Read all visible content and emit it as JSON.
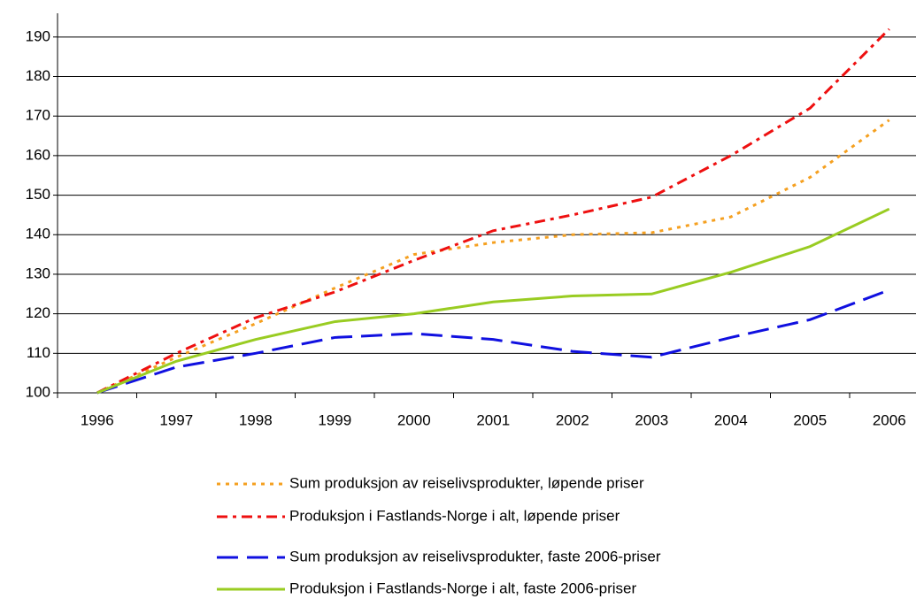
{
  "chart_data": {
    "type": "line",
    "categories": [
      "1996",
      "1997",
      "1998",
      "1999",
      "2000",
      "2001",
      "2002",
      "2003",
      "2004",
      "2005",
      "2006"
    ],
    "series": [
      {
        "name": "Sum produksjon av reiselivsprodukter, løpende priser",
        "color": "#f5a020",
        "style": "dotted",
        "values": [
          100,
          109,
          117.5,
          126.5,
          135,
          138,
          140,
          140.5,
          144.5,
          154.5,
          169
        ]
      },
      {
        "name": "Produksjon i Fastlands-Norge i alt, løpende priser",
        "color": "#ee1010",
        "style": "dashdot",
        "values": [
          100,
          110,
          119,
          125.5,
          133.5,
          141,
          145,
          149.5,
          160,
          172,
          192
        ]
      },
      {
        "name": "Sum produksjon av reiselivsprodukter, faste 2006-priser",
        "color": "#1010e0",
        "style": "dashed",
        "values": [
          100,
          106.5,
          110,
          114,
          115,
          113.5,
          110.5,
          109,
          114,
          118.5,
          126
        ]
      },
      {
        "name": "Produksjon i Fastlands-Norge i alt, faste 2006-priser",
        "color": "#99cc22",
        "style": "solid",
        "values": [
          100,
          108,
          113.5,
          118,
          120,
          123,
          124.5,
          125,
          130.5,
          137,
          146.5
        ]
      }
    ],
    "ylim": [
      100,
      196
    ],
    "yticks": [
      100,
      110,
      120,
      130,
      140,
      150,
      160,
      170,
      180,
      190
    ],
    "grid": true
  }
}
